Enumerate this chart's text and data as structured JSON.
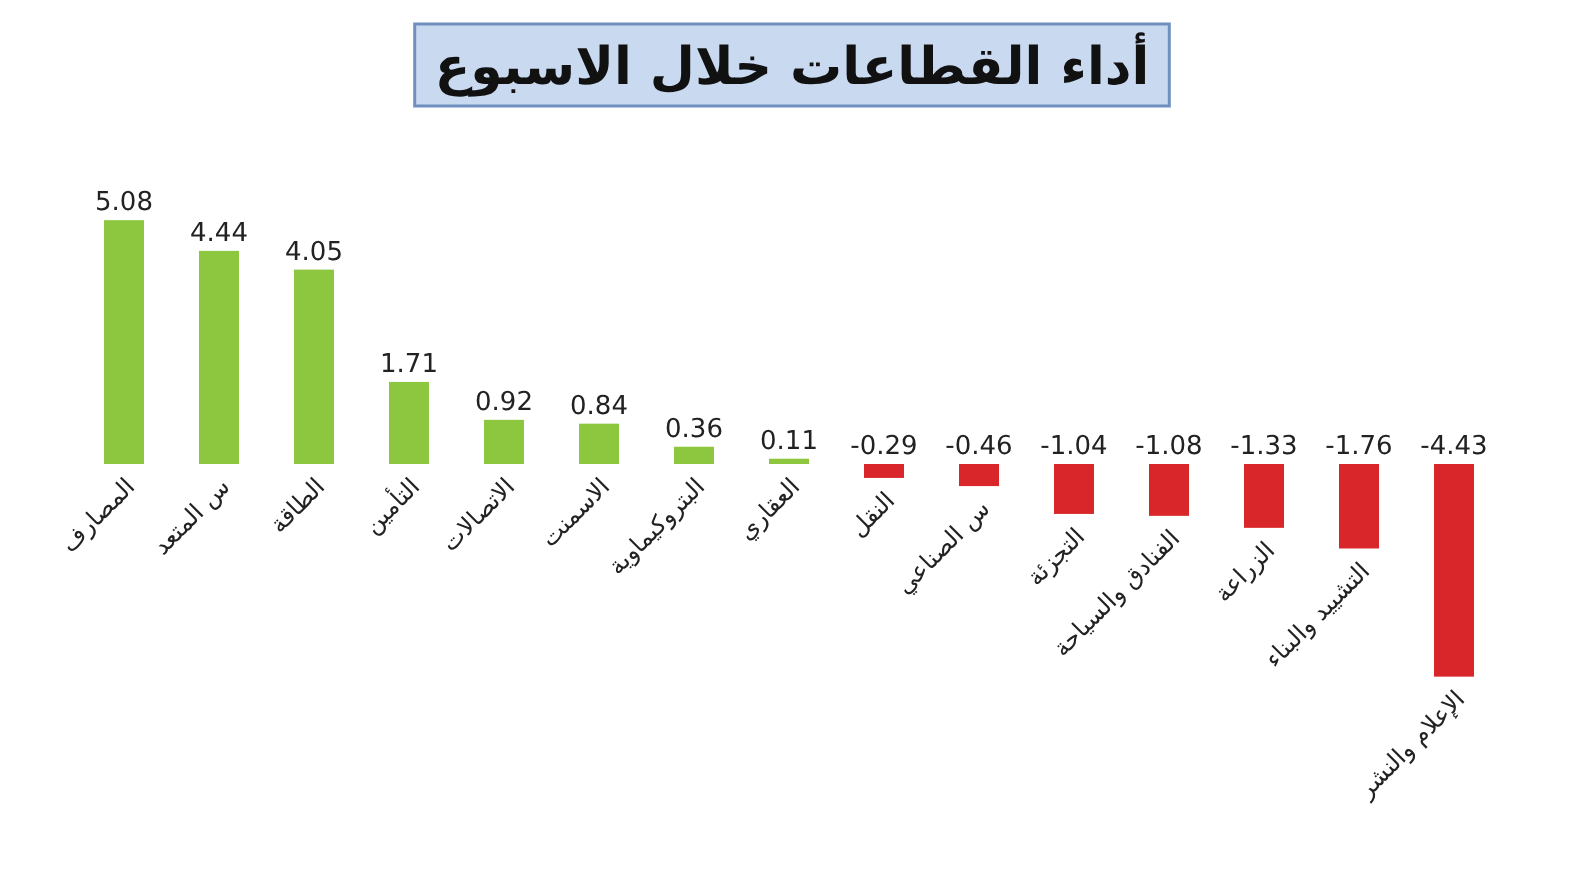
{
  "chart_data": {
    "type": "bar",
    "title": "أداء القطاعات خلال الاسبوع",
    "categories": [
      "المصارف",
      "س المتعد",
      "الطاقة",
      "التأمين",
      "الاتصالات",
      "الاسمنت",
      "البتروكيماوية",
      "العقاري",
      "النقل",
      "س الصناعي",
      "التجزئة",
      "الفنادق والسياحة",
      "الزراعة",
      "التشييد والبناء",
      "الإعلام والنشر"
    ],
    "values": [
      5.08,
      4.44,
      4.05,
      1.71,
      0.92,
      0.84,
      0.36,
      0.11,
      -0.29,
      -0.46,
      -1.04,
      -1.08,
      -1.33,
      -1.76,
      -4.43
    ],
    "colors": [
      "#8dc63f",
      "#8dc63f",
      "#8dc63f",
      "#8dc63f",
      "#8dc63f",
      "#8dc63f",
      "#8dc63f",
      "#8dc63f",
      "#d9262a",
      "#d9262a",
      "#d9262a",
      "#d9262a",
      "#d9262a",
      "#d9262a",
      "#d9262a"
    ],
    "data_labels": true
  }
}
